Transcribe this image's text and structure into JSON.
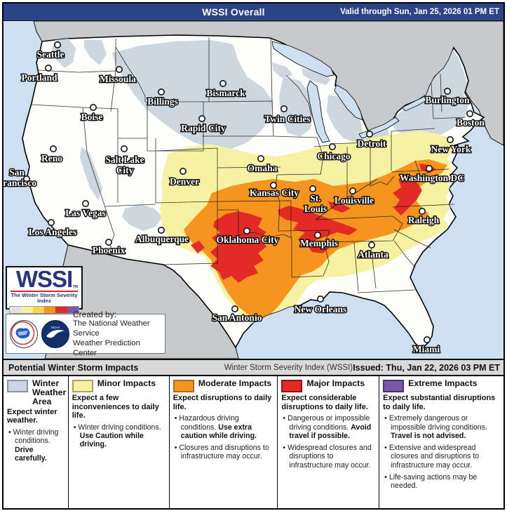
{
  "header": {
    "title": "WSSI Overall",
    "valid": "Valid through Sun, Jan 25, 2026 01 PM ET"
  },
  "footer_bar": {
    "left": "Potential Winter Storm Impacts",
    "center": "Winter Storm Severity Index (WSSI)",
    "right": "Issued: Thu, Jan 22, 2026 03 PM ET"
  },
  "wssi_logo": {
    "acronym": "WSSI",
    "tm": "TM",
    "tagline": "The Winter Storm Severity Index",
    "strip_colors": [
      "#e2e2e2",
      "#f7f2a2",
      "#f7d94e",
      "#f5941f",
      "#e22a26",
      "#7b57a8"
    ]
  },
  "credit": {
    "line1": "Created by:",
    "line2": "The National Weather Service",
    "line3": "Weather Prediction Center",
    "noaa_text": "NOAA"
  },
  "colors": {
    "header_bg": "#2c4384",
    "ocean": "#cde0f2",
    "foreign": "#c8c9cb",
    "land": "#fdfdfc",
    "winter": "#cdd7e0",
    "minor": "#f7f2a2",
    "moderate": "#f5941f",
    "major": "#e22a26",
    "extreme": "#7b57a8",
    "state_line": "#1b1b1b"
  },
  "map": {
    "cities": [
      {
        "name": "Seattle",
        "dot": [
          82,
          67
        ],
        "label": [
          72,
          85
        ]
      },
      {
        "name": "Portland",
        "dot": [
          69,
          100
        ],
        "label": [
          56,
          118
        ]
      },
      {
        "name": "Missoula",
        "dot": [
          170,
          102
        ],
        "label": [
          168,
          120
        ]
      },
      {
        "name": "Boise",
        "dot": [
          133,
          156
        ],
        "label": [
          131,
          174
        ]
      },
      {
        "name": "Billings",
        "dot": [
          230,
          134
        ],
        "label": [
          232,
          152
        ]
      },
      {
        "name": "Bismarck",
        "dot": [
          318,
          122
        ],
        "label": [
          322,
          140
        ]
      },
      {
        "name": "Rapid City",
        "dot": [
          288,
          172
        ],
        "label": [
          290,
          190
        ]
      },
      {
        "name": "Twin Cities",
        "dot": [
          405,
          158
        ],
        "label": [
          410,
          177
        ]
      },
      {
        "name": "Reno",
        "dot": [
          76,
          215
        ],
        "label": [
          74,
          233
        ]
      },
      {
        "name": "Salt Lake City",
        "dot": [
          177,
          215
        ],
        "label": [
          178,
          235
        ],
        "lines": [
          "Salt Lake",
          "City"
        ]
      },
      {
        "name": "San Francisco",
        "dot": [
          38,
          258
        ],
        "label": [
          24,
          253
        ],
        "lines": [
          "San",
          "Francisco"
        ]
      },
      {
        "name": "Denver",
        "dot": [
          261,
          247
        ],
        "label": [
          263,
          266
        ]
      },
      {
        "name": "Omaha",
        "dot": [
          372,
          229
        ],
        "label": [
          374,
          247
        ]
      },
      {
        "name": "Chicago",
        "dot": [
          474,
          212
        ],
        "label": [
          476,
          230
        ]
      },
      {
        "name": "Detroit",
        "dot": [
          527,
          194
        ],
        "label": [
          530,
          212
        ]
      },
      {
        "name": "New York",
        "dot": [
          642,
          202
        ],
        "label": [
          643,
          220
        ]
      },
      {
        "name": "Burlington",
        "dot": [
          638,
          133
        ],
        "label": [
          638,
          150
        ]
      },
      {
        "name": "Boston",
        "dot": [
          670,
          165
        ],
        "label": [
          671,
          182
        ]
      },
      {
        "name": "Washington DC",
        "dot": [
          612,
          243
        ],
        "label": [
          616,
          261
        ]
      },
      {
        "name": "Kansas City",
        "dot": [
          390,
          267
        ],
        "label": [
          391,
          282
        ]
      },
      {
        "name": "St. Louis",
        "dot": [
          446,
          272
        ],
        "label": [
          450,
          290
        ],
        "lines": [
          "St.",
          "Louis"
        ]
      },
      {
        "name": "Louisville",
        "dot": [
          503,
          275
        ],
        "label": [
          505,
          293
        ]
      },
      {
        "name": "Raleigh",
        "dot": [
          602,
          304
        ],
        "label": [
          604,
          321
        ]
      },
      {
        "name": "Las Vegas",
        "dot": [
          122,
          293
        ],
        "label": [
          122,
          311
        ]
      },
      {
        "name": "Los Angeles",
        "dot": [
          73,
          320
        ],
        "label": [
          75,
          338
        ]
      },
      {
        "name": "Albuquerque",
        "dot": [
          230,
          331
        ],
        "label": [
          231,
          348
        ]
      },
      {
        "name": "Oklahoma City",
        "dot": [
          352,
          332
        ],
        "label": [
          353,
          349
        ]
      },
      {
        "name": "Phoenix",
        "dot": [
          155,
          348
        ],
        "label": [
          155,
          364
        ]
      },
      {
        "name": "Memphis",
        "dot": [
          453,
          338
        ],
        "label": [
          455,
          354
        ]
      },
      {
        "name": "Atlanta",
        "dot": [
          530,
          352
        ],
        "label": [
          532,
          370
        ]
      },
      {
        "name": "San Antonio",
        "dot": [
          335,
          443
        ],
        "label": [
          338,
          460
        ]
      },
      {
        "name": "New Orleans",
        "dot": [
          457,
          429
        ],
        "label": [
          457,
          448
        ]
      },
      {
        "name": "Miami",
        "dot": [
          609,
          487
        ],
        "label": [
          608,
          505
        ]
      }
    ]
  },
  "legend": {
    "columns": [
      {
        "title": "Winter Weather Area",
        "color": "#ccd6e2",
        "border": "#8a96a3",
        "width": "13%",
        "intro": "Expect winter weather.",
        "bullets": [
          [
            {
              "t": "Winter driving conditions. ",
              "b": false
            },
            {
              "t": "Drive carefully.",
              "b": true
            }
          ]
        ]
      },
      {
        "title": "Minor Impacts",
        "color": "#f7f2a2",
        "border": "#a8a468",
        "width": "20.2%",
        "intro": "Expect a few inconveniences to daily life.",
        "bullets": [
          [
            {
              "t": "Winter driving conditions. ",
              "b": false
            },
            {
              "t": "Use Caution while driving.",
              "b": true
            }
          ]
        ]
      },
      {
        "title": "Moderate Impacts",
        "color": "#f5941f",
        "border": "#b36a12",
        "width": "21.7%",
        "intro": "Expect disruptions to daily life.",
        "bullets": [
          [
            {
              "t": "Hazardous driving conditions. ",
              "b": false
            },
            {
              "t": "Use extra caution while driving.",
              "b": true
            }
          ],
          [
            {
              "t": "Closures and disruptions to infrastructure may occur.",
              "b": false
            }
          ]
        ]
      },
      {
        "title": "Major Impacts",
        "color": "#e22a26",
        "border": "#911314",
        "width": "20.3%",
        "intro": "Expect considerable disruptions to daily life.",
        "bullets": [
          [
            {
              "t": "Dangerous or impossible driving conditions. ",
              "b": false
            },
            {
              "t": "Avoid travel if possible.",
              "b": true
            }
          ],
          [
            {
              "t": "Widespread closures and disruptions to infrastructure may occur.",
              "b": false
            }
          ]
        ]
      },
      {
        "title": "Extreme Impacts",
        "color": "#7b57a8",
        "border": "#4c3270",
        "width": "24.8%",
        "intro": "Expect substantial disruptions to daily life.",
        "bullets": [
          [
            {
              "t": "Extremely dangerous or impossible driving conditions. ",
              "b": false
            },
            {
              "t": "Travel is not advised.",
              "b": true
            }
          ],
          [
            {
              "t": "Extensive and widespread closures and disruptions to infrastructure may occur.",
              "b": false
            }
          ],
          [
            {
              "t": "Life-saving actions may be needed.",
              "b": false
            }
          ]
        ]
      }
    ]
  }
}
